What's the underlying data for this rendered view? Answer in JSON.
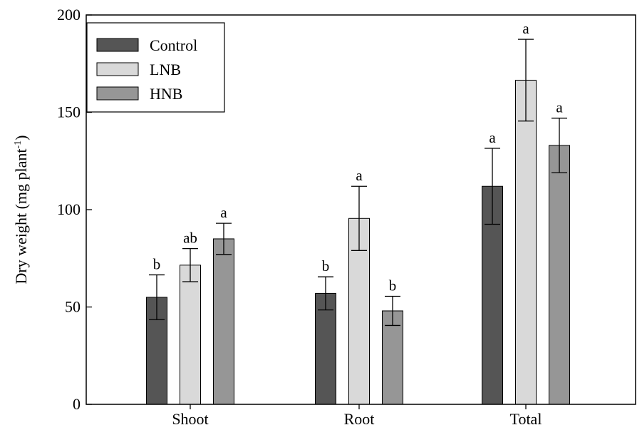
{
  "chart_data": {
    "type": "bar",
    "categories": [
      "Shoot",
      "Root",
      "Total"
    ],
    "ylabel": "Dry weight (mg plant",
    "ylabel_superscript": "-1",
    "ylabel_suffix": ")",
    "xlabel": "",
    "ylim": [
      0,
      200
    ],
    "yticks": [
      0,
      50,
      100,
      150,
      200
    ],
    "grid": false,
    "legend_position": "top-left",
    "series": [
      {
        "name": "Control",
        "color": "#555555",
        "values": [
          55,
          57,
          112
        ],
        "errors": [
          11.5,
          8.5,
          19.5
        ],
        "letters": [
          "b",
          "b",
          "a"
        ]
      },
      {
        "name": "LNB",
        "color": "#d9d9d9",
        "values": [
          71.5,
          95.5,
          166.5
        ],
        "errors": [
          8.5,
          16.5,
          21
        ],
        "letters": [
          "ab",
          "a",
          "a"
        ]
      },
      {
        "name": "HNB",
        "color": "#969696",
        "values": [
          85,
          48,
          133
        ],
        "errors": [
          8,
          7.5,
          14
        ],
        "letters": [
          "a",
          "b",
          "a"
        ]
      }
    ]
  }
}
